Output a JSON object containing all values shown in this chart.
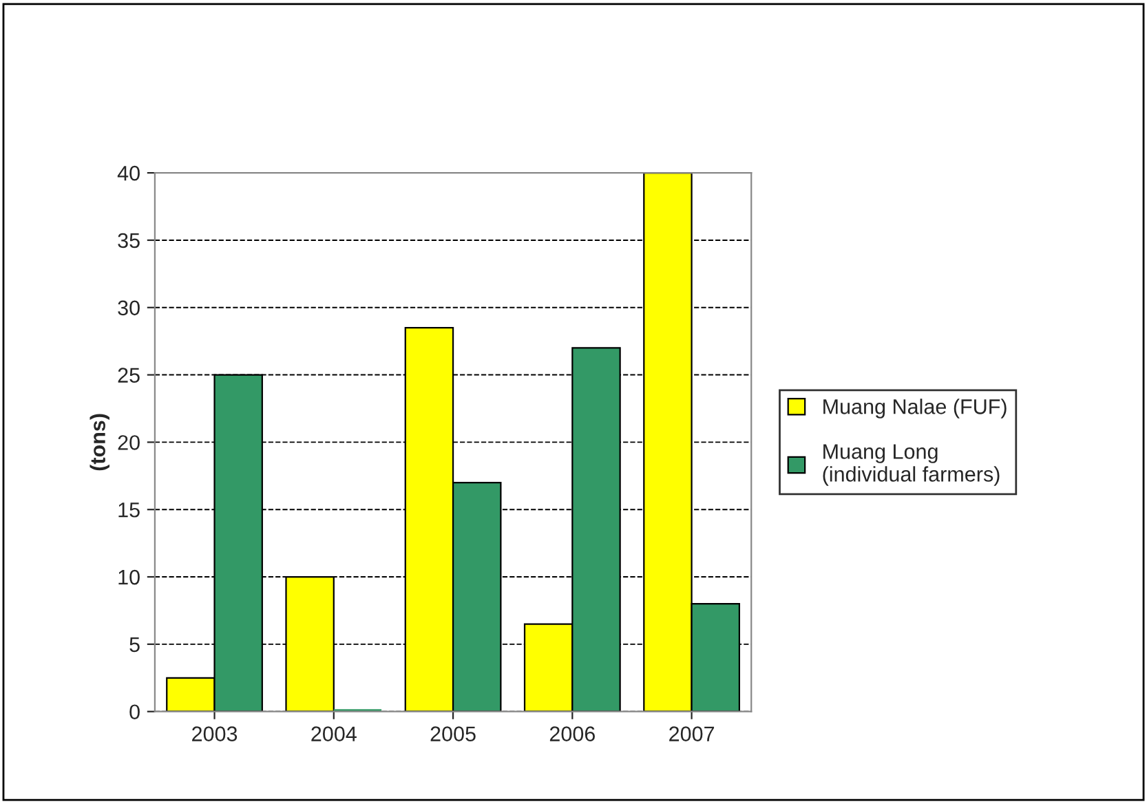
{
  "chart_data": {
    "type": "bar",
    "ylabel": "(tons)",
    "categories": [
      "2003",
      "2004",
      "2005",
      "2006",
      "2007"
    ],
    "series": [
      {
        "name": "Muang Nalae (FUF)",
        "color": "#ffff00",
        "values": [
          2.5,
          10,
          28.5,
          6.5,
          40
        ]
      },
      {
        "name": "Muang Long\n(individual farmers)",
        "color": "#339966",
        "values": [
          25,
          0,
          17,
          27,
          8
        ]
      }
    ],
    "ylim": [
      0,
      40
    ],
    "yticks": [
      0,
      5,
      10,
      15,
      20,
      25,
      30,
      35,
      40
    ],
    "grid": "y",
    "line_style": "dashed",
    "legend": "right"
  }
}
